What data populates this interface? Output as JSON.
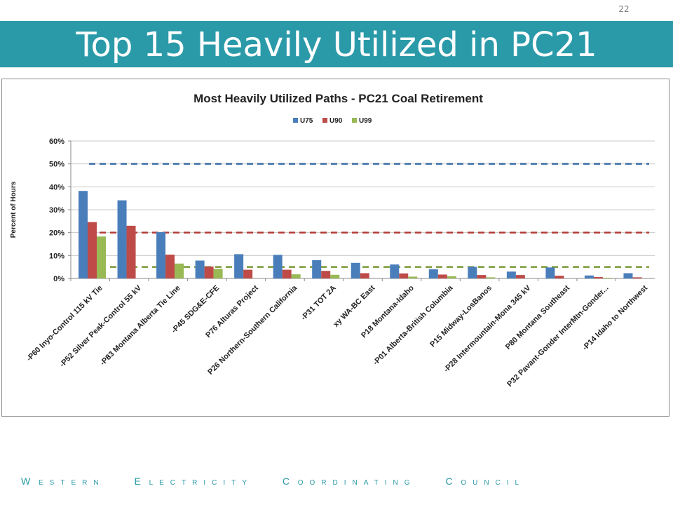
{
  "page_number": "22",
  "slide_title": "Top 15 Heavily Utilized in PC21",
  "footer": [
    "Western",
    "Electricity",
    "Coordinating",
    "Council"
  ],
  "chart_data": {
    "type": "bar",
    "title": "Most Heavily Utilized Paths - PC21 Coal Retirement",
    "ylabel": "Percent of Hours",
    "xlabel": "",
    "ylim": [
      0,
      60
    ],
    "yticks": [
      "0%",
      "10%",
      "20%",
      "30%",
      "40%",
      "50%",
      "60%"
    ],
    "grid": true,
    "legend_position": "top",
    "categories": [
      "-P60 Inyo-Control 115 kV Tie",
      "-P52 Silver Peak-Control 55 kV",
      "-P83 Montana Alberta Tie Line",
      "-P45 SDG&E-CFE",
      "P76 Alturas Project",
      "P26 Northern-Southern California",
      "-P31 TOT 2A",
      "xy WA-BC East",
      "P18 Montana-Idaho",
      "-P01 Alberta-British Columbia",
      "P15 Midway-LosBanos",
      "-P28 Intermountain-Mona 345 kV",
      "P80 Montana Southeast",
      "P32 Pavant-Gonder InterMtn-Gonder...",
      "-P14 Idaho to Northwest"
    ],
    "series": [
      {
        "name": "U75",
        "color": "#4a7ebb",
        "values": [
          38.2,
          34.1,
          20.2,
          7.8,
          10.6,
          10.3,
          8.0,
          6.8,
          6.1,
          4.0,
          5.1,
          3.0,
          4.8,
          1.3,
          2.3
        ]
      },
      {
        "name": "U90",
        "color": "#be4b48",
        "values": [
          24.6,
          23.0,
          10.4,
          5.2,
          3.8,
          3.8,
          3.3,
          2.3,
          2.2,
          1.7,
          1.5,
          1.5,
          1.2,
          0.6,
          0.5
        ]
      },
      {
        "name": "U99",
        "color": "#98b954",
        "values": [
          18.3,
          0,
          6.5,
          4.2,
          0,
          1.8,
          1.6,
          0,
          0.8,
          1.0,
          0.5,
          0,
          0,
          0.3,
          0
        ]
      }
    ],
    "threshold_lines": [
      {
        "value": 50,
        "color": "#3b6ea5"
      },
      {
        "value": 20,
        "color": "#b23b38"
      },
      {
        "value": 5,
        "color": "#7a9a35"
      }
    ]
  }
}
